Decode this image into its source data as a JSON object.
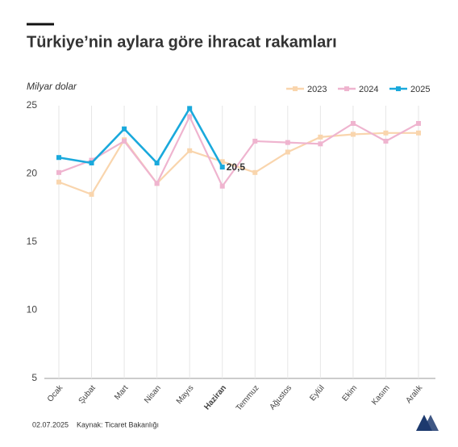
{
  "chart_data": {
    "type": "line",
    "title": "Türkiye’nin aylara göre ihracat rakamları",
    "y_label": "Milyar dolar",
    "date": "02.07.2025",
    "source": "Kaynak: Ticaret Bakanlığı",
    "categories": [
      "Ocak",
      "Şubat",
      "Mart",
      "Nisan",
      "Mayıs",
      "Haziran",
      "Temmuz",
      "Ağustos",
      "Eylül",
      "Ekim",
      "Kasım",
      "Aralık"
    ],
    "series": [
      {
        "name": "2023",
        "color": "#f9d5ad",
        "values": [
          19.4,
          18.5,
          22.5,
          19.3,
          21.7,
          20.9,
          20.1,
          21.6,
          22.7,
          22.9,
          23.0,
          23.0
        ]
      },
      {
        "name": "2024",
        "color": "#efb4cf",
        "values": [
          20.1,
          21.0,
          22.4,
          19.3,
          24.2,
          19.1,
          22.4,
          22.3,
          22.2,
          23.7,
          22.4,
          23.7
        ]
      },
      {
        "name": "2025",
        "color": "#1aa9dc",
        "values": [
          21.2,
          20.8,
          23.3,
          20.8,
          24.8,
          20.5,
          null,
          null,
          null,
          null,
          null,
          null
        ],
        "value_labels": [
          null,
          null,
          null,
          null,
          null,
          "20,5",
          null,
          null,
          null,
          null,
          null,
          null
        ]
      }
    ],
    "ylim": [
      5,
      25
    ],
    "yticks": [
      5,
      10,
      15,
      20,
      25
    ],
    "grid": true,
    "legend": "top-right"
  }
}
